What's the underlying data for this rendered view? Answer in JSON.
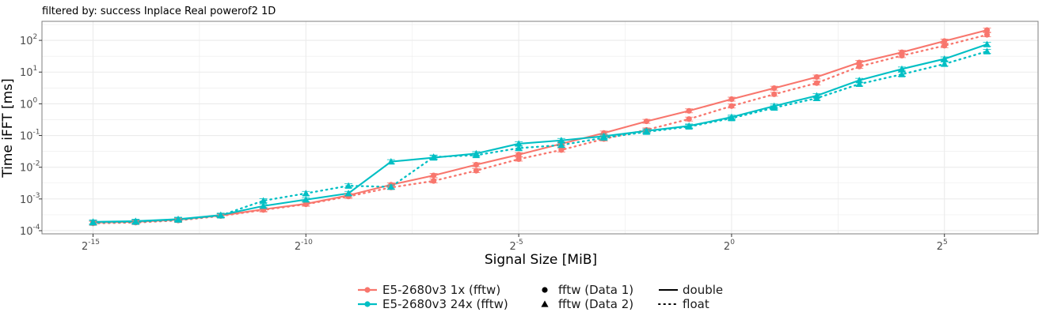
{
  "chart_data": {
    "type": "line",
    "title": "filtered by: success Inplace Real powerof2 1D",
    "xlabel": "Signal Size [MiB]",
    "ylabel": "Time iFFT [ms]",
    "x_scale": "log2",
    "y_scale": "log10",
    "xlim_log2": [
      -16.2,
      7.2
    ],
    "ylim_log10": [
      -4.1,
      2.6
    ],
    "x_ticks": [
      {
        "base": "2",
        "exp": "-15",
        "log2": -15
      },
      {
        "base": "2",
        "exp": "-10",
        "log2": -10
      },
      {
        "base": "2",
        "exp": "-5",
        "log2": -5
      },
      {
        "base": "2",
        "exp": "0",
        "log2": 0
      },
      {
        "base": "2",
        "exp": "5",
        "log2": 5
      }
    ],
    "y_ticks": [
      {
        "base": "10",
        "exp": "-4",
        "log10": -4
      },
      {
        "base": "10",
        "exp": "-3",
        "log10": -3
      },
      {
        "base": "10",
        "exp": "-2",
        "log10": -2
      },
      {
        "base": "10",
        "exp": "-1",
        "log10": -1
      },
      {
        "base": "10",
        "exp": "0",
        "log10": 0
      },
      {
        "base": "10",
        "exp": "1",
        "log10": 1
      },
      {
        "base": "10",
        "exp": "2",
        "log10": 2
      }
    ],
    "x_log2": [
      -15,
      -14,
      -13,
      -12,
      -11,
      -10,
      -9,
      -8,
      -7,
      -6,
      -5,
      -4,
      -3,
      -2,
      -1,
      0,
      1,
      2,
      3,
      4,
      5,
      6
    ],
    "grid": true,
    "legend_position": "bottom",
    "colors": {
      "e5_1x": "#F8766D",
      "e5_24x": "#00BFC4",
      "grid": "#ebebeb",
      "panel_border": "#7f7f7f"
    },
    "series": [
      {
        "name": "E5-2680v3 1x (fftw)",
        "color_key": "e5_1x",
        "precision": "double",
        "shape": "circle",
        "values": [
          0.00018,
          0.00019,
          0.00022,
          0.0003,
          0.00047,
          0.0007,
          0.0013,
          0.0028,
          0.0055,
          0.012,
          0.025,
          0.055,
          0.12,
          0.28,
          0.6,
          1.4,
          3.1,
          7.0,
          20,
          42,
          95,
          210
        ]
      },
      {
        "name": "E5-2680v3 1x (fftw)",
        "color_key": "e5_1x",
        "precision": "float",
        "shape": "circle",
        "values": [
          0.00017,
          0.00018,
          0.00021,
          0.00029,
          0.00045,
          0.00068,
          0.0012,
          0.0023,
          0.0037,
          0.0078,
          0.018,
          0.035,
          0.078,
          0.15,
          0.33,
          0.85,
          2.0,
          4.5,
          15,
          33,
          68,
          150
        ]
      },
      {
        "name": "E5-2680v3 24x (fftw)",
        "color_key": "e5_24x",
        "precision": "double",
        "shape": "triangle",
        "values": [
          0.00019,
          0.0002,
          0.00023,
          0.00031,
          0.0006,
          0.00095,
          0.0015,
          0.015,
          0.02,
          0.027,
          0.055,
          0.07,
          0.095,
          0.14,
          0.2,
          0.38,
          0.85,
          1.8,
          5.5,
          12.5,
          26,
          75
        ]
      },
      {
        "name": "E5-2680v3 24x (fftw)",
        "color_key": "e5_24x",
        "precision": "float",
        "shape": "triangle",
        "values": [
          0.00018,
          0.00019,
          0.00022,
          0.0003,
          0.00088,
          0.0015,
          0.0026,
          0.0024,
          0.021,
          0.024,
          0.04,
          0.05,
          0.085,
          0.13,
          0.19,
          0.35,
          0.75,
          1.5,
          4.2,
          8.5,
          18,
          45
        ]
      }
    ]
  },
  "legend": {
    "colour_items": [
      {
        "label": "E5-2680v3 1x (fftw)",
        "color_key": "e5_1x"
      },
      {
        "label": "E5-2680v3 24x (fftw)",
        "color_key": "e5_24x"
      }
    ],
    "shape_items": [
      {
        "label": "fftw (Data 1)",
        "shape": "circle"
      },
      {
        "label": "fftw (Data 2)",
        "shape": "triangle"
      }
    ],
    "linetype_items": [
      {
        "label": "double",
        "linetype": "solid"
      },
      {
        "label": "float",
        "linetype": "dotted"
      }
    ]
  }
}
